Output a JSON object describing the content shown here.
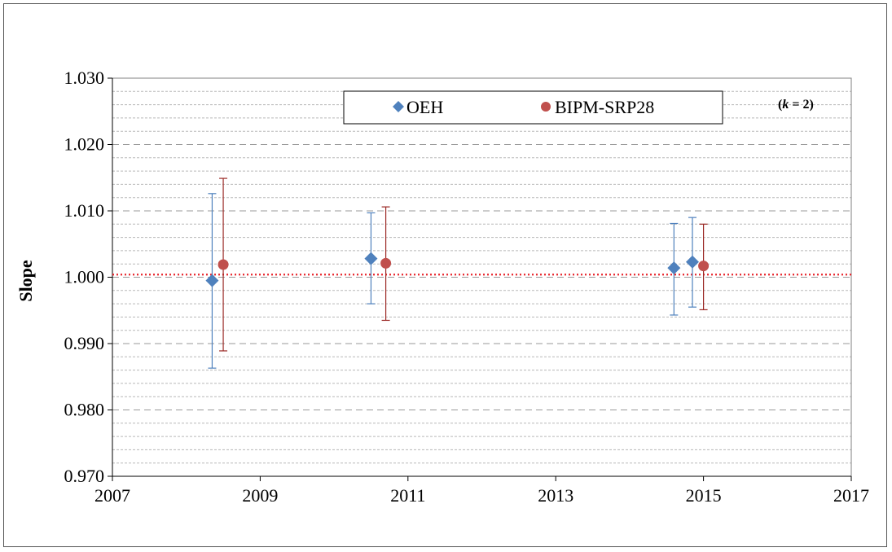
{
  "chart_data": {
    "type": "scatter",
    "xlabel": "",
    "ylabel": "Slope",
    "xlim": [
      2007,
      2017
    ],
    "ylim": [
      0.97,
      1.03
    ],
    "x_ticks": [
      "2007",
      "2009",
      "2011",
      "2013",
      "2015",
      "2017"
    ],
    "y_ticks": [
      "0.970",
      "0.980",
      "0.990",
      "1.000",
      "1.010",
      "1.020",
      "1.030"
    ],
    "grid": "horizontal dashed",
    "legend_position": "top-center",
    "annotation": {
      "var": "k",
      "rest": " = 2)",
      "open": "("
    },
    "reference_line": {
      "y": 1.0004,
      "color": "#e8262d",
      "style": "dotted"
    },
    "series": [
      {
        "name": "OEH",
        "marker": "diamond",
        "color": "#4f81bd",
        "errorbar_color": "#4f81bd",
        "points": [
          {
            "x": 2008.35,
            "y": 0.9995,
            "err_low": 0.9863,
            "err_high": 1.0126
          },
          {
            "x": 2010.5,
            "y": 1.0028,
            "err_low": 0.996,
            "err_high": 1.0097
          },
          {
            "x": 2014.6,
            "y": 1.0014,
            "err_low": 0.9943,
            "err_high": 1.0081
          },
          {
            "x": 2014.85,
            "y": 1.0023,
            "err_low": 0.9955,
            "err_high": 1.009
          }
        ]
      },
      {
        "name": "BIPM-SRP28",
        "marker": "circle",
        "color": "#c0504d",
        "errorbar_color": "#9b2a26",
        "points": [
          {
            "x": 2008.5,
            "y": 1.0019,
            "err_low": 0.9889,
            "err_high": 1.0149
          },
          {
            "x": 2010.7,
            "y": 1.0021,
            "err_low": 0.9935,
            "err_high": 1.0106
          },
          {
            "x": 2015.0,
            "y": 1.0017,
            "err_low": 0.9951,
            "err_high": 1.008
          }
        ]
      }
    ]
  }
}
